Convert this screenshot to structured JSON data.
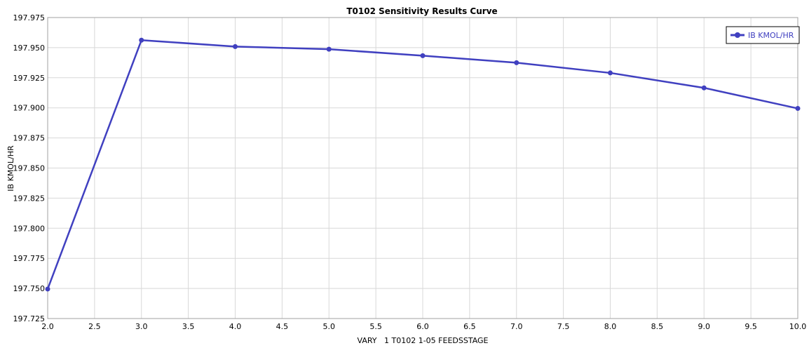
{
  "chart_data": {
    "type": "line",
    "title": "T0102 Sensitivity Results Curve",
    "xlabel": "VARY   1 T0102 1-05 FEEDSSTAGE",
    "ylabel": "IB KMOL/HR",
    "xlim": [
      2.0,
      10.0
    ],
    "ylim": [
      197.725,
      197.975
    ],
    "xticks": [
      "2.0",
      "2.5",
      "3.0",
      "3.5",
      "4.0",
      "4.5",
      "5.0",
      "5.5",
      "6.0",
      "6.5",
      "7.0",
      "7.5",
      "8.0",
      "8.5",
      "9.0",
      "9.5",
      "10.0"
    ],
    "yticks": [
      "197.725",
      "197.750",
      "197.775",
      "197.800",
      "197.825",
      "197.850",
      "197.875",
      "197.900",
      "197.925",
      "197.950",
      "197.975"
    ],
    "grid": true,
    "legend_position": "top-right",
    "series": [
      {
        "name": "IB KMOL/HR",
        "color": "#4040c0",
        "x": [
          2,
          3,
          4,
          5,
          6,
          7,
          8,
          9,
          10
        ],
        "y": [
          197.7495,
          197.9562,
          197.9509,
          197.9487,
          197.9433,
          197.9375,
          197.929,
          197.9166,
          197.8995
        ]
      }
    ]
  }
}
